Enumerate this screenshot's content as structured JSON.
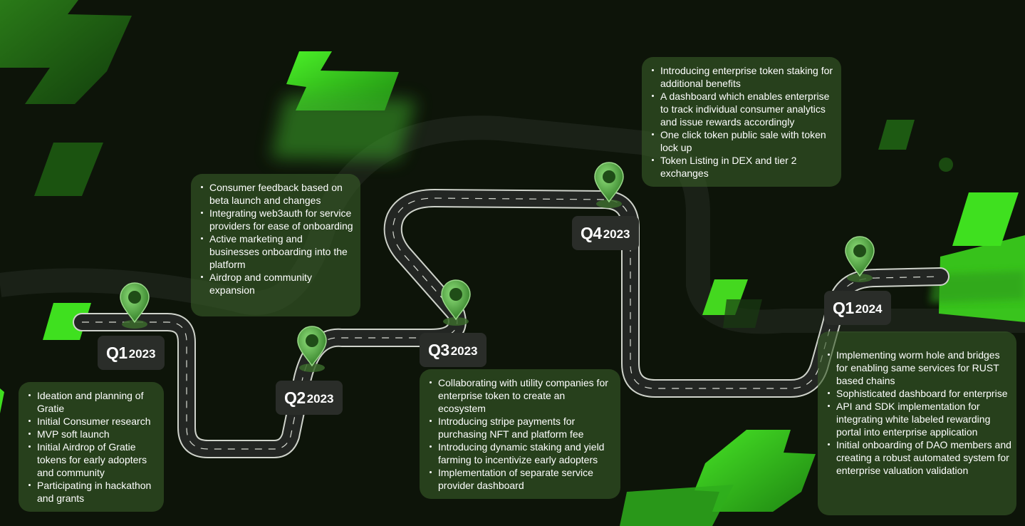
{
  "milestones": [
    {
      "quarter": "Q1",
      "year": "2023",
      "items": [
        "Ideation and planning of Gratie",
        "Initial Consumer research",
        "MVP soft launch",
        "Initial Airdrop of Gratie tokens for early adopters and community",
        "Participating in hackathon and grants"
      ]
    },
    {
      "quarter": "Q2",
      "year": "2023",
      "items": [
        "Consumer feedback based on beta launch and changes",
        "Integrating web3auth for service providers for ease of onboarding",
        "Active marketing and businesses onboarding into the platform",
        "Airdrop and community expansion"
      ]
    },
    {
      "quarter": "Q3",
      "year": "2023",
      "items": [
        "Collaborating with utility companies for enterprise token to create an ecosystem",
        "Introducing stripe payments for purchasing NFT and platform fee",
        "Introducing dynamic staking and yield farming to incentivize early adopters",
        "Implementation of separate service provider dashboard"
      ]
    },
    {
      "quarter": "Q4",
      "year": "2023",
      "items": [
        "Introducing enterprise token staking for additional benefits",
        "A dashboard which enables enterprise to track individual consumer analytics and issue rewards accordingly",
        "One click token public sale with token lock up",
        "Token Listing in DEX and tier 2 exchanges"
      ]
    },
    {
      "quarter": "Q1",
      "year": "2024",
      "items": [
        "Implementing worm hole and bridges for enabling same services for RUST based chains",
        "Sophisticated dashboard for enterprise",
        "API and SDK implementation for integrating white labeled rewarding portal into enterprise application",
        "Initial onboarding of DAO members and creating a robust automated system for enterprise valuation validation"
      ]
    }
  ],
  "colors": {
    "background": "#0d1409",
    "card": "#385c28",
    "accent_green": "#3fe01f",
    "label_bg": "#2a2d29",
    "road": "#232623"
  },
  "icons": [
    "map-pin-icon"
  ]
}
